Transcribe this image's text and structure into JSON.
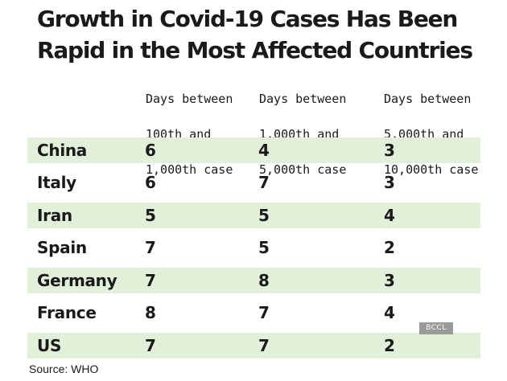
{
  "title": "Growth in Covid-19 Cases Has Been Rapid in the Most Affected Countries",
  "columns": [
    {
      "lines": [
        "Days between",
        "100th and",
        "1,000th case"
      ]
    },
    {
      "lines": [
        "Days between",
        "1,000th and",
        "5,000th case"
      ]
    },
    {
      "lines": [
        "Days between",
        "5,000th and",
        "10,000th case"
      ]
    }
  ],
  "rows": [
    {
      "country": "China",
      "values": [
        "6",
        "4",
        "3"
      ],
      "shaded": true
    },
    {
      "country": "Italy",
      "values": [
        "6",
        "7",
        "3"
      ],
      "shaded": false
    },
    {
      "country": "Iran",
      "values": [
        "5",
        "5",
        "4"
      ],
      "shaded": true
    },
    {
      "country": "Spain",
      "values": [
        "7",
        "5",
        "2"
      ],
      "shaded": false
    },
    {
      "country": "Germany",
      "values": [
        "7",
        "8",
        "3"
      ],
      "shaded": true
    },
    {
      "country": "France",
      "values": [
        "8",
        "7",
        "4"
      ],
      "shaded": false
    },
    {
      "country": "US",
      "values": [
        "7",
        "7",
        "2"
      ],
      "shaded": true
    }
  ],
  "source": "Source: WHO",
  "watermark": "BCCL",
  "colors": {
    "row_shade": "#e2f0da",
    "text": "#1a1a1a",
    "watermark_bg": "#9a9a9a"
  },
  "chart_data": {
    "type": "table",
    "title": "Growth in Covid-19 Cases Has Been Rapid in the Most Affected Countries",
    "columns": [
      "Days between 100th and 1,000th case",
      "Days between 1,000th and 5,000th case",
      "Days between 5,000th and 10,000th case"
    ],
    "categories": [
      "China",
      "Italy",
      "Iran",
      "Spain",
      "Germany",
      "France",
      "US"
    ],
    "series": [
      {
        "name": "Days between 100th and 1,000th case",
        "values": [
          6,
          6,
          5,
          7,
          7,
          8,
          7
        ]
      },
      {
        "name": "Days between 1,000th and 5,000th case",
        "values": [
          4,
          7,
          5,
          5,
          8,
          7,
          7
        ]
      },
      {
        "name": "Days between 5,000th and 10,000th case",
        "values": [
          3,
          3,
          4,
          2,
          3,
          4,
          2
        ]
      }
    ]
  }
}
